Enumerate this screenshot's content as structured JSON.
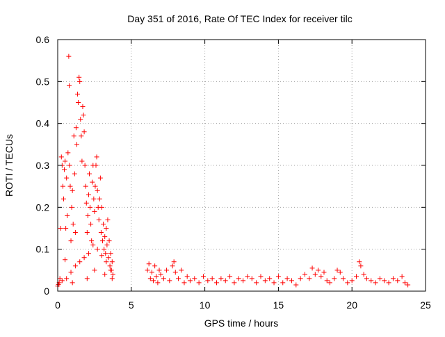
{
  "chart_data": {
    "type": "scatter",
    "title": "Day 351 of 2016, Rate Of TEC Index for receiver tilc",
    "xlabel": "GPS time / hours",
    "ylabel": "ROTI / TECUs",
    "xlim": [
      0,
      25
    ],
    "ylim": [
      0,
      0.6
    ],
    "x_ticks": [
      0,
      5,
      10,
      15,
      20,
      25
    ],
    "x_tick_labels": [
      "0",
      "5",
      "10",
      "15",
      "20",
      "25"
    ],
    "y_ticks": [
      0,
      0.1,
      0.2,
      0.3,
      0.4,
      0.5,
      0.6
    ],
    "y_tick_labels": [
      "0",
      "0.1",
      "0.2",
      "0.3",
      "0.4",
      "0.5",
      "0.6"
    ],
    "grid": true,
    "marker": "+",
    "color": "#ff0000",
    "series": [
      {
        "name": "ROTI",
        "points": [
          [
            0.0,
            0.012
          ],
          [
            0.1,
            0.02
          ],
          [
            0.15,
            0.03
          ],
          [
            0.2,
            0.15
          ],
          [
            0.25,
            0.32
          ],
          [
            0.3,
            0.3
          ],
          [
            0.35,
            0.25
          ],
          [
            0.4,
            0.22
          ],
          [
            0.45,
            0.29
          ],
          [
            0.5,
            0.31
          ],
          [
            0.5,
            0.075
          ],
          [
            0.55,
            0.15
          ],
          [
            0.6,
            0.27
          ],
          [
            0.65,
            0.18
          ],
          [
            0.7,
            0.33
          ],
          [
            0.75,
            0.56
          ],
          [
            0.78,
            0.49
          ],
          [
            0.8,
            0.3
          ],
          [
            0.85,
            0.25
          ],
          [
            0.9,
            0.12
          ],
          [
            0.95,
            0.2
          ],
          [
            1.0,
            0.24
          ],
          [
            1.05,
            0.16
          ],
          [
            1.1,
            0.37
          ],
          [
            1.15,
            0.28
          ],
          [
            1.2,
            0.14
          ],
          [
            1.25,
            0.39
          ],
          [
            1.3,
            0.35
          ],
          [
            1.35,
            0.47
          ],
          [
            1.4,
            0.45
          ],
          [
            1.45,
            0.51
          ],
          [
            1.5,
            0.5
          ],
          [
            1.55,
            0.41
          ],
          [
            1.6,
            0.37
          ],
          [
            1.65,
            0.31
          ],
          [
            1.7,
            0.44
          ],
          [
            1.75,
            0.42
          ],
          [
            1.8,
            0.38
          ],
          [
            1.85,
            0.3
          ],
          [
            1.9,
            0.25
          ],
          [
            1.95,
            0.21
          ],
          [
            2.0,
            0.14
          ],
          [
            2.05,
            0.18
          ],
          [
            2.1,
            0.23
          ],
          [
            2.15,
            0.28
          ],
          [
            2.2,
            0.2
          ],
          [
            2.25,
            0.16
          ],
          [
            2.3,
            0.12
          ],
          [
            2.35,
            0.26
          ],
          [
            2.4,
            0.3
          ],
          [
            2.45,
            0.22
          ],
          [
            2.5,
            0.19
          ],
          [
            2.55,
            0.25
          ],
          [
            2.6,
            0.3
          ],
          [
            2.65,
            0.32
          ],
          [
            2.7,
            0.24
          ],
          [
            2.75,
            0.2
          ],
          [
            2.8,
            0.17
          ],
          [
            2.85,
            0.22
          ],
          [
            2.9,
            0.27
          ],
          [
            2.95,
            0.14
          ],
          [
            3.0,
            0.2
          ],
          [
            3.05,
            0.12
          ],
          [
            3.1,
            0.16
          ],
          [
            3.15,
            0.1
          ],
          [
            3.2,
            0.13
          ],
          [
            3.25,
            0.09
          ],
          [
            3.3,
            0.15
          ],
          [
            3.35,
            0.11
          ],
          [
            3.4,
            0.17
          ],
          [
            3.45,
            0.08
          ],
          [
            3.5,
            0.12
          ],
          [
            3.55,
            0.06
          ],
          [
            3.6,
            0.09
          ],
          [
            3.65,
            0.05
          ],
          [
            3.7,
            0.07
          ],
          [
            3.75,
            0.04
          ],
          [
            0.05,
            0.016
          ],
          [
            0.3,
            0.025
          ],
          [
            0.6,
            0.03
          ],
          [
            0.9,
            0.045
          ],
          [
            1.2,
            0.06
          ],
          [
            1.5,
            0.07
          ],
          [
            1.8,
            0.08
          ],
          [
            2.1,
            0.09
          ],
          [
            2.4,
            0.11
          ],
          [
            2.7,
            0.1
          ],
          [
            3.0,
            0.085
          ],
          [
            3.3,
            0.07
          ],
          [
            3.6,
            0.05
          ],
          [
            1.0,
            0.02
          ],
          [
            2.0,
            0.03
          ],
          [
            2.5,
            0.05
          ],
          [
            3.2,
            0.04
          ],
          [
            3.7,
            0.03
          ],
          [
            6.1,
            0.05
          ],
          [
            6.2,
            0.065
          ],
          [
            6.3,
            0.03
          ],
          [
            6.4,
            0.045
          ],
          [
            6.5,
            0.025
          ],
          [
            6.6,
            0.06
          ],
          [
            6.7,
            0.035
          ],
          [
            6.8,
            0.02
          ],
          [
            6.9,
            0.05
          ],
          [
            7.0,
            0.04
          ],
          [
            7.2,
            0.03
          ],
          [
            7.4,
            0.05
          ],
          [
            7.6,
            0.025
          ],
          [
            7.8,
            0.06
          ],
          [
            7.9,
            0.07
          ],
          [
            8.0,
            0.045
          ],
          [
            8.2,
            0.03
          ],
          [
            8.4,
            0.05
          ],
          [
            8.6,
            0.02
          ],
          [
            8.8,
            0.035
          ],
          [
            9.0,
            0.025
          ],
          [
            9.3,
            0.03
          ],
          [
            9.6,
            0.02
          ],
          [
            9.9,
            0.035
          ],
          [
            10.2,
            0.025
          ],
          [
            10.5,
            0.03
          ],
          [
            10.8,
            0.02
          ],
          [
            11.1,
            0.03
          ],
          [
            11.4,
            0.025
          ],
          [
            11.7,
            0.035
          ],
          [
            12.0,
            0.02
          ],
          [
            12.3,
            0.03
          ],
          [
            12.6,
            0.025
          ],
          [
            12.9,
            0.035
          ],
          [
            13.2,
            0.03
          ],
          [
            13.5,
            0.02
          ],
          [
            13.8,
            0.035
          ],
          [
            14.1,
            0.025
          ],
          [
            14.4,
            0.03
          ],
          [
            14.7,
            0.02
          ],
          [
            15.0,
            0.035
          ],
          [
            15.3,
            0.02
          ],
          [
            15.6,
            0.03
          ],
          [
            15.9,
            0.025
          ],
          [
            16.2,
            0.015
          ],
          [
            16.5,
            0.03
          ],
          [
            16.8,
            0.04
          ],
          [
            17.1,
            0.03
          ],
          [
            17.3,
            0.055
          ],
          [
            17.5,
            0.04
          ],
          [
            17.7,
            0.05
          ],
          [
            17.9,
            0.035
          ],
          [
            18.1,
            0.045
          ],
          [
            18.3,
            0.025
          ],
          [
            18.5,
            0.02
          ],
          [
            18.8,
            0.03
          ],
          [
            19.0,
            0.05
          ],
          [
            19.2,
            0.045
          ],
          [
            19.4,
            0.03
          ],
          [
            19.7,
            0.02
          ],
          [
            20.0,
            0.025
          ],
          [
            20.3,
            0.035
          ],
          [
            20.5,
            0.07
          ],
          [
            20.6,
            0.06
          ],
          [
            20.8,
            0.04
          ],
          [
            21.0,
            0.03
          ],
          [
            21.3,
            0.025
          ],
          [
            21.6,
            0.02
          ],
          [
            21.9,
            0.03
          ],
          [
            22.2,
            0.025
          ],
          [
            22.5,
            0.02
          ],
          [
            22.8,
            0.03
          ],
          [
            23.1,
            0.025
          ],
          [
            23.4,
            0.035
          ],
          [
            23.6,
            0.02
          ],
          [
            23.8,
            0.015
          ]
        ]
      }
    ]
  }
}
